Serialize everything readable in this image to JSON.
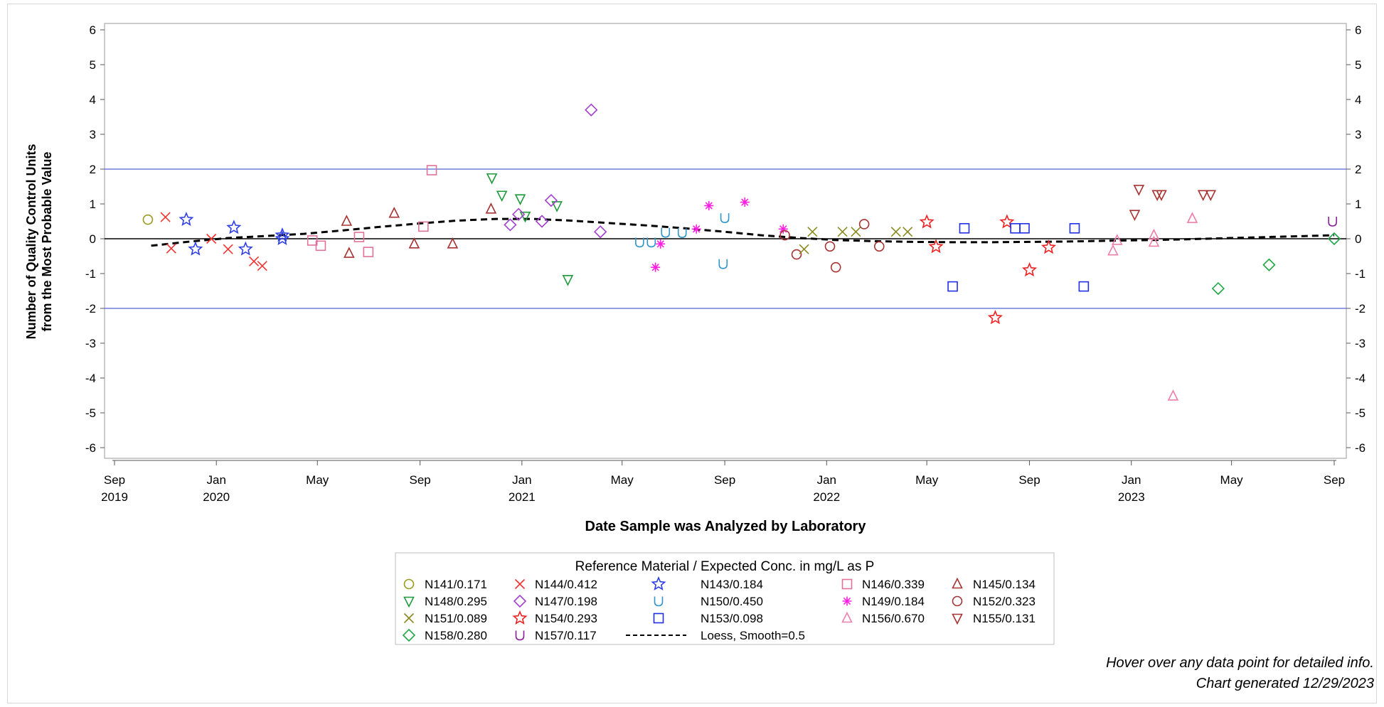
{
  "chart_data": {
    "type": "scatter",
    "title": "",
    "xlabel": "Date Sample was Analyzed by Laboratory",
    "ylabel_line1": "Number of Quality Control Units",
    "ylabel_line2": "from the Most Probable Value",
    "ylim": [
      -6,
      6
    ],
    "y_ticks": [
      -6,
      -5,
      -4,
      -3,
      -2,
      -1,
      0,
      1,
      2,
      3,
      4,
      5,
      6
    ],
    "x_range": [
      "2019-09-01",
      "2023-09-01"
    ],
    "x_ticks": [
      {
        "date": "2019-09-01",
        "label": "Sep",
        "year": "2019"
      },
      {
        "date": "2020-01-01",
        "label": "Jan",
        "year": "2020"
      },
      {
        "date": "2020-05-01",
        "label": "May",
        "year": ""
      },
      {
        "date": "2020-09-01",
        "label": "Sep",
        "year": ""
      },
      {
        "date": "2021-01-01",
        "label": "Jan",
        "year": "2021"
      },
      {
        "date": "2021-05-01",
        "label": "May",
        "year": ""
      },
      {
        "date": "2021-09-01",
        "label": "Sep",
        "year": ""
      },
      {
        "date": "2022-01-01",
        "label": "Jan",
        "year": "2022"
      },
      {
        "date": "2022-05-01",
        "label": "May",
        "year": ""
      },
      {
        "date": "2022-09-01",
        "label": "Sep",
        "year": ""
      },
      {
        "date": "2023-01-01",
        "label": "Jan",
        "year": "2023"
      },
      {
        "date": "2023-05-01",
        "label": "May",
        "year": ""
      },
      {
        "date": "2023-09-01",
        "label": "Sep",
        "year": ""
      }
    ],
    "reference_lines": [
      {
        "y": 2,
        "color": "#6f7fe0"
      },
      {
        "y": -2,
        "color": "#6f7fe0"
      },
      {
        "y": 0,
        "color": "#000000"
      }
    ],
    "grid": false,
    "legend": {
      "title": "Reference Material / Expected Conc. in mg/L as P",
      "placement": "bottom-center",
      "rows": [
        [
          "N141",
          "N144",
          "N143",
          "N146",
          "N145"
        ],
        [
          "N148",
          "N147",
          "N150",
          "N149",
          "N152"
        ],
        [
          "N151",
          "N154",
          "N153",
          "N156",
          "N155"
        ],
        [
          "N158",
          "N157",
          "LOESS"
        ]
      ]
    },
    "loess": {
      "label": "Loess, Smooth=0.5",
      "color": "#000000",
      "points": [
        [
          "2019-10-15",
          -0.2
        ],
        [
          "2019-12-01",
          -0.08
        ],
        [
          "2020-01-15",
          0.02
        ],
        [
          "2020-03-01",
          0.08
        ],
        [
          "2020-04-15",
          0.14
        ],
        [
          "2020-06-01",
          0.24
        ],
        [
          "2020-07-15",
          0.34
        ],
        [
          "2020-09-01",
          0.44
        ],
        [
          "2020-10-15",
          0.52
        ],
        [
          "2020-12-01",
          0.57
        ],
        [
          "2021-01-15",
          0.57
        ],
        [
          "2021-03-01",
          0.52
        ],
        [
          "2021-04-15",
          0.45
        ],
        [
          "2021-06-01",
          0.38
        ],
        [
          "2021-07-15",
          0.3
        ],
        [
          "2021-09-01",
          0.2
        ],
        [
          "2021-10-15",
          0.1
        ],
        [
          "2021-12-01",
          0.02
        ],
        [
          "2022-01-15",
          -0.04
        ],
        [
          "2022-03-01",
          -0.07
        ],
        [
          "2022-04-15",
          -0.09
        ],
        [
          "2022-06-01",
          -0.1
        ],
        [
          "2022-07-15",
          -0.1
        ],
        [
          "2022-09-01",
          -0.09
        ],
        [
          "2022-10-15",
          -0.08
        ],
        [
          "2022-12-01",
          -0.06
        ],
        [
          "2023-01-15",
          -0.04
        ],
        [
          "2023-03-01",
          -0.02
        ],
        [
          "2023-04-15",
          0.01
        ],
        [
          "2023-06-01",
          0.04
        ],
        [
          "2023-07-15",
          0.07
        ],
        [
          "2023-09-01",
          0.1
        ]
      ]
    },
    "series": [
      {
        "name": "N141/0.171",
        "key": "N141",
        "marker": "circle",
        "color": "#9a9a1f",
        "points": [
          [
            "2019-10-11",
            0.55
          ]
        ]
      },
      {
        "name": "N144/0.412",
        "key": "N144",
        "marker": "x",
        "color": "#ee3333",
        "points": [
          [
            "2019-11-01",
            0.62
          ],
          [
            "2019-11-08",
            -0.28
          ],
          [
            "2019-12-26",
            0.0
          ],
          [
            "2020-01-15",
            -0.3
          ],
          [
            "2020-02-15",
            -0.65
          ],
          [
            "2020-02-25",
            -0.78
          ]
        ]
      },
      {
        "name": "N143/0.184",
        "key": "N143",
        "marker": "star",
        "color": "#2f3fe6",
        "points": [
          [
            "2019-11-26",
            0.55
          ],
          [
            "2019-12-07",
            -0.3
          ],
          [
            "2020-01-22",
            0.32
          ],
          [
            "2020-02-05",
            -0.3
          ],
          [
            "2020-03-20",
            0.1
          ],
          [
            "2020-03-20",
            0.0
          ]
        ]
      },
      {
        "name": "N146/0.339",
        "key": "N146",
        "marker": "square",
        "color": "#e0729a",
        "points": [
          [
            "2020-04-25",
            -0.05
          ],
          [
            "2020-05-05",
            -0.2
          ],
          [
            "2020-06-20",
            0.05
          ],
          [
            "2020-07-01",
            -0.38
          ],
          [
            "2020-09-05",
            0.35
          ],
          [
            "2020-09-15",
            1.97
          ]
        ]
      },
      {
        "name": "N145/0.134",
        "key": "N145",
        "marker": "triangle",
        "color": "#a83232",
        "points": [
          [
            "2020-06-05",
            0.5
          ],
          [
            "2020-06-08",
            -0.42
          ],
          [
            "2020-08-01",
            0.73
          ],
          [
            "2020-08-25",
            -0.15
          ],
          [
            "2020-10-10",
            -0.15
          ],
          [
            "2020-11-25",
            0.85
          ]
        ]
      },
      {
        "name": "N148/0.295",
        "key": "N148",
        "marker": "triangle-down",
        "color": "#1f9a3a",
        "points": [
          [
            "2020-11-26",
            1.75
          ],
          [
            "2020-12-08",
            1.25
          ],
          [
            "2020-12-30",
            1.15
          ],
          [
            "2021-01-05",
            0.65
          ],
          [
            "2021-02-12",
            0.95
          ],
          [
            "2021-02-25",
            -1.17
          ]
        ]
      },
      {
        "name": "N147/0.198",
        "key": "N147",
        "marker": "diamond",
        "color": "#a23fd0",
        "points": [
          [
            "2020-12-18",
            0.4
          ],
          [
            "2020-12-28",
            0.7
          ],
          [
            "2021-01-25",
            0.5
          ],
          [
            "2021-02-05",
            1.1
          ],
          [
            "2021-03-25",
            3.7
          ],
          [
            "2021-04-05",
            0.2
          ]
        ]
      },
      {
        "name": "N150/0.450",
        "key": "N150",
        "marker": "cup",
        "color": "#2f96c9",
        "points": [
          [
            "2021-05-22",
            -0.1
          ],
          [
            "2021-06-05",
            -0.1
          ],
          [
            "2021-06-22",
            0.18
          ],
          [
            "2021-07-12",
            0.17
          ],
          [
            "2021-08-30",
            -0.72
          ],
          [
            "2021-09-01",
            0.6
          ]
        ]
      },
      {
        "name": "N149/0.184",
        "key": "N149",
        "marker": "asterisk",
        "color": "#ff1fe0",
        "points": [
          [
            "2021-06-10",
            -0.82
          ],
          [
            "2021-06-16",
            -0.15
          ],
          [
            "2021-07-29",
            0.28
          ],
          [
            "2021-08-13",
            0.95
          ],
          [
            "2021-09-25",
            1.05
          ],
          [
            "2021-11-10",
            0.28
          ]
        ]
      },
      {
        "name": "N152/0.323",
        "key": "N152",
        "marker": "circle",
        "color": "#a83232",
        "points": [
          [
            "2021-11-12",
            0.1
          ],
          [
            "2021-11-26",
            -0.45
          ],
          [
            "2022-01-05",
            -0.22
          ],
          [
            "2022-01-12",
            -0.82
          ],
          [
            "2022-02-15",
            0.42
          ],
          [
            "2022-03-05",
            -0.22
          ]
        ]
      },
      {
        "name": "N151/0.089",
        "key": "N151",
        "marker": "x",
        "color": "#8a8a20",
        "points": [
          [
            "2021-12-05",
            -0.3
          ],
          [
            "2021-12-15",
            0.2
          ],
          [
            "2022-01-20",
            0.2
          ],
          [
            "2022-02-05",
            0.2
          ],
          [
            "2022-03-25",
            0.2
          ],
          [
            "2022-04-08",
            0.2
          ]
        ]
      },
      {
        "name": "N154/0.293",
        "key": "N154",
        "marker": "star",
        "color": "#ee2222",
        "points": [
          [
            "2022-05-01",
            0.48
          ],
          [
            "2022-05-12",
            -0.23
          ],
          [
            "2022-07-22",
            -2.27
          ],
          [
            "2022-08-05",
            0.48
          ],
          [
            "2022-09-01",
            -0.9
          ],
          [
            "2022-09-24",
            -0.25
          ]
        ]
      },
      {
        "name": "N153/0.098",
        "key": "N153",
        "marker": "square",
        "color": "#1f2fe6",
        "points": [
          [
            "2022-06-01",
            -1.37
          ],
          [
            "2022-06-15",
            0.3
          ],
          [
            "2022-08-15",
            0.3
          ],
          [
            "2022-08-26",
            0.3
          ],
          [
            "2022-10-25",
            0.3
          ],
          [
            "2022-11-05",
            -1.37
          ]
        ]
      },
      {
        "name": "N156/0.670",
        "key": "N156",
        "marker": "triangle",
        "color": "#ee7fa8",
        "points": [
          [
            "2022-12-10",
            -0.35
          ],
          [
            "2022-12-15",
            -0.05
          ],
          [
            "2023-01-28",
            0.1
          ],
          [
            "2023-01-28",
            -0.1
          ],
          [
            "2023-02-20",
            -4.52
          ],
          [
            "2023-03-15",
            0.58
          ]
        ]
      },
      {
        "name": "N155/0.131",
        "key": "N155",
        "marker": "triangle-down",
        "color": "#a83232",
        "points": [
          [
            "2023-01-05",
            0.7
          ],
          [
            "2023-01-10",
            1.42
          ],
          [
            "2023-02-01",
            1.27
          ],
          [
            "2023-02-06",
            1.27
          ],
          [
            "2023-03-28",
            1.27
          ],
          [
            "2023-04-06",
            1.27
          ]
        ]
      },
      {
        "name": "N158/0.280",
        "key": "N158",
        "marker": "diamond",
        "color": "#1fa845",
        "points": [
          [
            "2023-04-15",
            -1.43
          ],
          [
            "2023-06-15",
            -0.75
          ],
          [
            "2023-09-01",
            0.0
          ]
        ]
      },
      {
        "name": "N157/0.117",
        "key": "N157",
        "marker": "cup",
        "color": "#8a1f9a",
        "points": [
          [
            "2023-08-30",
            0.5
          ]
        ]
      }
    ]
  },
  "footer": {
    "hover_note": "Hover over any data point for detailed info.",
    "generated": "Chart generated 12/29/2023"
  }
}
